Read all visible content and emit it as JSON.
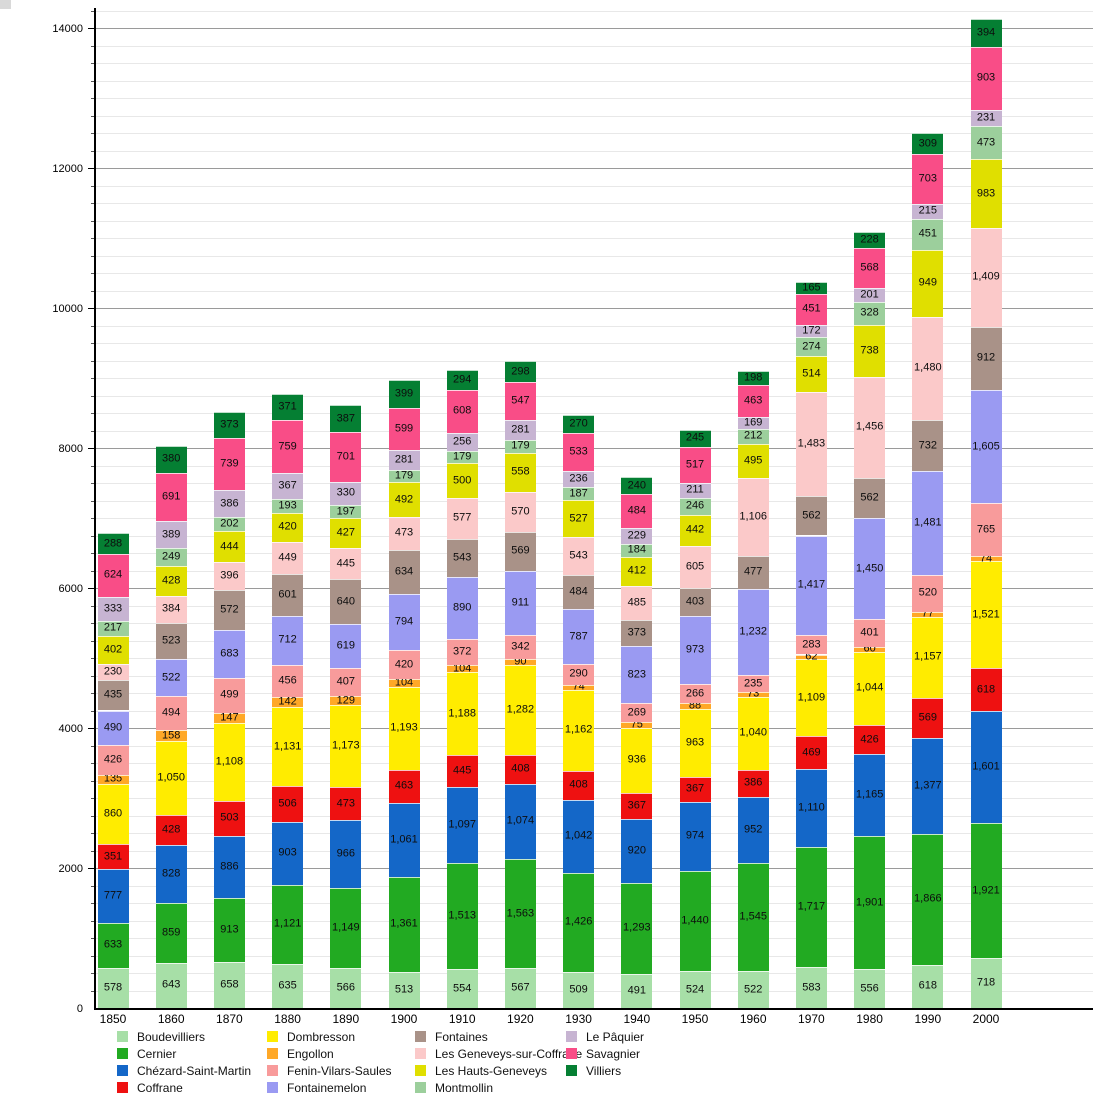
{
  "chart_data": {
    "type": "bar",
    "stacked": true,
    "title": "",
    "xlabel": "",
    "ylabel": "",
    "grid": true,
    "legend_position": "bottom",
    "ylim": [
      0,
      14250
    ],
    "y_tick_interval": 2000,
    "y_minor_tick_interval": 250,
    "y_tick_labels": [
      "0",
      "2000",
      "4000",
      "6000",
      "8000",
      "10000",
      "12000",
      "14000"
    ],
    "categories": [
      "1850",
      "1860",
      "1870",
      "1880",
      "1890",
      "1900",
      "1910",
      "1920",
      "1930",
      "1940",
      "1950",
      "1960",
      "1970",
      "1980",
      "1990",
      "2000"
    ],
    "series": [
      {
        "name": "Boudevilliers",
        "color": "#a7dfa7",
        "values": [
          578,
          643,
          658,
          635,
          566,
          513,
          554,
          567,
          509,
          491,
          524,
          522,
          583,
          556,
          618,
          718
        ]
      },
      {
        "name": "Cernier",
        "color": "#22aa22",
        "values": [
          633,
          859,
          913,
          1121,
          1149,
          1361,
          1513,
          1563,
          1426,
          1293,
          1440,
          1545,
          1717,
          1901,
          1866,
          1921
        ]
      },
      {
        "name": "Chézard-Saint-Martin",
        "color": "#1467c8",
        "values": [
          777,
          828,
          886,
          903,
          966,
          1061,
          1097,
          1074,
          1042,
          920,
          974,
          952,
          1110,
          1165,
          1377,
          1601
        ]
      },
      {
        "name": "Coffrane",
        "color": "#ee1111",
        "values": [
          351,
          428,
          503,
          506,
          473,
          463,
          445,
          408,
          408,
          367,
          367,
          386,
          469,
          426,
          569,
          618
        ]
      },
      {
        "name": "Dombresson",
        "color": "#ffec00",
        "values": [
          860,
          1050,
          1108,
          1131,
          1173,
          1193,
          1188,
          1282,
          1162,
          936,
          963,
          1040,
          1109,
          1044,
          1157,
          1521
        ]
      },
      {
        "name": "Engollon",
        "color": "#ffa827",
        "values": [
          135,
          158,
          147,
          142,
          129,
          104,
          104,
          90,
          74,
          75,
          88,
          73,
          62,
          60,
          77,
          74
        ]
      },
      {
        "name": "Fenin-Vilars-Saules",
        "color": "#f89b9b",
        "values": [
          426,
          494,
          499,
          456,
          407,
          420,
          372,
          342,
          290,
          269,
          266,
          235,
          283,
          401,
          520,
          765
        ]
      },
      {
        "name": "Fontainemelon",
        "color": "#9a9af2",
        "values": [
          490,
          522,
          683,
          712,
          619,
          794,
          890,
          911,
          787,
          823,
          973,
          1232,
          1417,
          1450,
          1481,
          1605
        ]
      },
      {
        "name": "Fontaines",
        "color": "#a99288",
        "values": [
          435,
          523,
          572,
          601,
          640,
          634,
          543,
          569,
          484,
          373,
          403,
          477,
          562,
          562,
          732,
          912
        ]
      },
      {
        "name": "Les Geneveys-sur-Coffrane",
        "color": "#fbc9c9",
        "values": [
          230,
          384,
          396,
          449,
          445,
          473,
          577,
          570,
          543,
          485,
          605,
          1106,
          1483,
          1456,
          1480,
          1409
        ]
      },
      {
        "name": "Les Hauts-Geneveys",
        "color": "#e0df00",
        "values": [
          402,
          428,
          444,
          420,
          427,
          492,
          500,
          558,
          527,
          412,
          442,
          495,
          514,
          738,
          949,
          983
        ]
      },
      {
        "name": "Montmollin",
        "color": "#9ccf9c",
        "values": [
          217,
          249,
          202,
          193,
          197,
          179,
          179,
          179,
          187,
          184,
          246,
          212,
          274,
          328,
          451,
          473
        ]
      },
      {
        "name": "Le Pâquier",
        "color": "#c7b4d2",
        "values": [
          333,
          389,
          386,
          367,
          330,
          281,
          256,
          281,
          236,
          229,
          211,
          169,
          172,
          201,
          215,
          231
        ]
      },
      {
        "name": "Savagnier",
        "color": "#f94d87",
        "values": [
          624,
          691,
          739,
          759,
          701,
          599,
          608,
          547,
          533,
          484,
          517,
          463,
          451,
          568,
          703,
          903
        ]
      },
      {
        "name": "Villiers",
        "color": "#057f33",
        "values": [
          288,
          380,
          373,
          371,
          387,
          399,
          294,
          298,
          270,
          240,
          245,
          198,
          165,
          228,
          309,
          394
        ]
      }
    ],
    "legend_columns": [
      [
        "Boudevilliers",
        "Cernier",
        "Chézard-Saint-Martin",
        "Coffrane"
      ],
      [
        "Dombresson",
        "Engollon",
        "Fenin-Vilars-Saules",
        "Fontainemelon"
      ],
      [
        "Fontaines",
        "Les Geneveys-sur-Coffrane",
        "Les Hauts-Geneveys",
        "Montmollin"
      ],
      [
        "Le Pâquier",
        "Savagnier",
        "Villiers"
      ]
    ]
  }
}
